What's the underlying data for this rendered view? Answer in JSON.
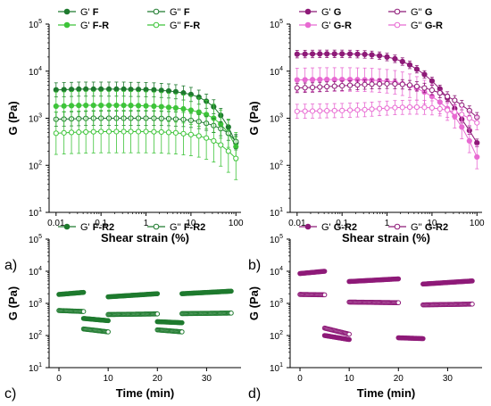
{
  "colors": {
    "F": "#1e7a2e",
    "F_R": "#3ec43a",
    "G": "#8e1a78",
    "G_R": "#e86ad2"
  },
  "chart_data": [
    {
      "panel": "a)",
      "type": "line",
      "xlabel": "Shear strain (%)",
      "ylabel": "G (Pa)",
      "x_scale": "log",
      "y_scale": "log",
      "xlim": [
        0.007,
        130
      ],
      "ylim": [
        10,
        100000
      ],
      "x_ticks": [
        {
          "v": 0.01,
          "label": "0.01"
        },
        {
          "v": 0.1,
          "label": "0.1"
        },
        {
          "v": 1,
          "label": "1"
        },
        {
          "v": 10,
          "label": "10"
        },
        {
          "v": 100,
          "label": "100"
        }
      ],
      "y_ticks": [
        {
          "v": 10,
          "base": "10",
          "exp": "1"
        },
        {
          "v": 100,
          "base": "10",
          "exp": "2"
        },
        {
          "v": 1000,
          "base": "10",
          "exp": "3"
        },
        {
          "v": 10000,
          "base": "10",
          "exp": "4"
        },
        {
          "v": 100000,
          "base": "10",
          "exp": "5"
        }
      ],
      "legend": {
        "position": "top",
        "columns": 2
      },
      "series": [
        {
          "name": "G' ",
          "name_bold": "F",
          "color_key": "F",
          "marker": "filled",
          "err": 0.15,
          "x": [
            0.01,
            0.015,
            0.022,
            0.032,
            0.046,
            0.068,
            0.1,
            0.15,
            0.22,
            0.32,
            0.46,
            0.68,
            1,
            1.5,
            2.2,
            3.2,
            4.6,
            6.8,
            10,
            15,
            22,
            32,
            46,
            68,
            100
          ],
          "y": [
            4000,
            4050,
            4100,
            4150,
            4150,
            4150,
            4150,
            4150,
            4150,
            4150,
            4100,
            4100,
            4050,
            4000,
            3900,
            3800,
            3650,
            3450,
            3200,
            2800,
            2300,
            1750,
            1150,
            650,
            300
          ]
        },
        {
          "name": "G' ",
          "name_bold": "F-R",
          "color_key": "F_R",
          "marker": "filled",
          "err": 0.3,
          "x": [
            0.01,
            0.015,
            0.022,
            0.032,
            0.046,
            0.068,
            0.1,
            0.15,
            0.22,
            0.32,
            0.46,
            0.68,
            1,
            1.5,
            2.2,
            3.2,
            4.6,
            6.8,
            10,
            15,
            22,
            32,
            46,
            68,
            100
          ],
          "y": [
            1800,
            1820,
            1850,
            1870,
            1880,
            1880,
            1880,
            1880,
            1880,
            1880,
            1870,
            1850,
            1830,
            1800,
            1760,
            1700,
            1650,
            1580,
            1480,
            1350,
            1200,
            1000,
            750,
            480,
            250
          ]
        },
        {
          "name": "G'' ",
          "name_bold": "F",
          "color_key": "F",
          "marker": "open",
          "err": 0.15,
          "x": [
            0.01,
            0.015,
            0.022,
            0.032,
            0.046,
            0.068,
            0.1,
            0.15,
            0.22,
            0.32,
            0.46,
            0.68,
            1,
            1.5,
            2.2,
            3.2,
            4.6,
            6.8,
            10,
            15,
            22,
            32,
            46,
            68,
            100
          ],
          "y": [
            950,
            960,
            970,
            980,
            990,
            1000,
            1000,
            1000,
            1000,
            1000,
            1000,
            1000,
            1000,
            1000,
            990,
            980,
            960,
            940,
            900,
            850,
            780,
            700,
            600,
            480,
            320
          ]
        },
        {
          "name": "G'' ",
          "name_bold": "F-R",
          "color_key": "F_R",
          "marker": "open",
          "err": 0.45,
          "x": [
            0.01,
            0.015,
            0.022,
            0.032,
            0.046,
            0.068,
            0.1,
            0.15,
            0.22,
            0.32,
            0.46,
            0.68,
            1,
            1.5,
            2.2,
            3.2,
            4.6,
            6.8,
            10,
            15,
            22,
            32,
            46,
            68,
            100
          ],
          "y": [
            480,
            490,
            500,
            505,
            510,
            515,
            520,
            520,
            520,
            520,
            520,
            520,
            520,
            515,
            510,
            500,
            490,
            470,
            450,
            420,
            380,
            330,
            270,
            200,
            140
          ]
        }
      ]
    },
    {
      "panel": "b)",
      "type": "line",
      "xlabel": "Shear strain (%)",
      "ylabel": "G (Pa)",
      "x_scale": "log",
      "y_scale": "log",
      "xlim": [
        0.007,
        130
      ],
      "ylim": [
        10,
        100000
      ],
      "x_ticks": [
        {
          "v": 0.01,
          "label": "0.01"
        },
        {
          "v": 0.1,
          "label": "0.1"
        },
        {
          "v": 1,
          "label": "1"
        },
        {
          "v": 10,
          "label": "10"
        },
        {
          "v": 100,
          "label": "100"
        }
      ],
      "y_ticks": [
        {
          "v": 10,
          "base": "10",
          "exp": "1"
        },
        {
          "v": 100,
          "base": "10",
          "exp": "2"
        },
        {
          "v": 1000,
          "base": "10",
          "exp": "3"
        },
        {
          "v": 10000,
          "base": "10",
          "exp": "4"
        },
        {
          "v": 100000,
          "base": "10",
          "exp": "5"
        }
      ],
      "legend": {
        "position": "top",
        "columns": 2
      },
      "series": [
        {
          "name": "G' ",
          "name_bold": "G",
          "color_key": "G",
          "marker": "filled",
          "err": 0.08,
          "x": [
            0.01,
            0.015,
            0.022,
            0.032,
            0.046,
            0.068,
            0.1,
            0.15,
            0.22,
            0.32,
            0.46,
            0.68,
            1,
            1.5,
            2.2,
            3.2,
            4.6,
            6.8,
            10,
            15,
            22,
            32,
            46,
            68,
            100
          ],
          "y": [
            23000,
            23100,
            23200,
            23300,
            23300,
            23300,
            23300,
            23200,
            23000,
            22700,
            22200,
            21300,
            20000,
            18300,
            16000,
            13600,
            11000,
            8500,
            6200,
            4200,
            2700,
            1600,
            950,
            550,
            300
          ]
        },
        {
          "name": "G' ",
          "name_bold": "G-R",
          "color_key": "G_R",
          "marker": "filled",
          "err": 0.25,
          "x": [
            0.01,
            0.015,
            0.022,
            0.032,
            0.046,
            0.068,
            0.1,
            0.15,
            0.22,
            0.32,
            0.46,
            0.68,
            1,
            1.5,
            2.2,
            3.2,
            4.6,
            6.8,
            10,
            15,
            22,
            32,
            46,
            68,
            100
          ],
          "y": [
            6500,
            6550,
            6600,
            6650,
            6650,
            6650,
            6650,
            6650,
            6600,
            6550,
            6450,
            6300,
            6100,
            5800,
            5400,
            4900,
            4300,
            3600,
            2900,
            2200,
            1600,
            1100,
            650,
            330,
            150
          ]
        },
        {
          "name": "G'' ",
          "name_bold": "G",
          "color_key": "G",
          "marker": "open",
          "err": 0.1,
          "x": [
            0.01,
            0.015,
            0.022,
            0.032,
            0.046,
            0.068,
            0.1,
            0.15,
            0.22,
            0.32,
            0.46,
            0.68,
            1,
            1.5,
            2.2,
            3.2,
            4.6,
            6.8,
            10,
            15,
            22,
            32,
            46,
            68,
            100
          ],
          "y": [
            4400,
            4450,
            4500,
            4600,
            4700,
            4800,
            4900,
            5000,
            5100,
            5200,
            5300,
            5350,
            5400,
            5350,
            5250,
            5050,
            4750,
            4400,
            3950,
            3450,
            2900,
            2400,
            1900,
            1450,
            1050
          ]
        },
        {
          "name": "G'' ",
          "name_bold": "G-R",
          "color_key": "G_R",
          "marker": "open",
          "err": 0.15,
          "x": [
            0.01,
            0.015,
            0.022,
            0.032,
            0.046,
            0.068,
            0.1,
            0.15,
            0.22,
            0.32,
            0.46,
            0.68,
            1,
            1.5,
            2.2,
            3.2,
            4.6,
            6.8,
            10,
            15,
            22,
            32,
            46,
            68,
            100
          ],
          "y": [
            1400,
            1410,
            1420,
            1430,
            1440,
            1450,
            1460,
            1480,
            1500,
            1520,
            1560,
            1600,
            1640,
            1680,
            1700,
            1720,
            1720,
            1700,
            1660,
            1580,
            1480,
            1350,
            1200,
            1000,
            800
          ]
        }
      ]
    },
    {
      "panel": "c)",
      "type": "scatter",
      "xlabel": "Time (min)",
      "ylabel": "G (Pa)",
      "x_scale": "linear",
      "y_scale": "log",
      "xlim": [
        -2,
        37
      ],
      "ylim": [
        10,
        100000
      ],
      "x_ticks": [
        {
          "v": 0,
          "label": "0"
        },
        {
          "v": 10,
          "label": "10"
        },
        {
          "v": 20,
          "label": "20"
        },
        {
          "v": 30,
          "label": "30"
        }
      ],
      "y_ticks": [
        {
          "v": 10,
          "base": "10",
          "exp": "1"
        },
        {
          "v": 100,
          "base": "10",
          "exp": "2"
        },
        {
          "v": 1000,
          "base": "10",
          "exp": "3"
        },
        {
          "v": 10000,
          "base": "10",
          "exp": "4"
        },
        {
          "v": 100000,
          "base": "10",
          "exp": "5"
        }
      ],
      "legend": {
        "position": "top",
        "columns": 2
      },
      "series": [
        {
          "name": "G' ",
          "name_bold": "F-R2",
          "color_key": "F",
          "marker": "filled",
          "segments": [
            {
              "t": [
                0,
                5
              ],
              "y": [
                1900,
                2200
              ]
            },
            {
              "t": [
                5,
                10
              ],
              "y": [
                340,
                290
              ]
            },
            {
              "t": [
                10,
                20
              ],
              "y": [
                1600,
                2000
              ]
            },
            {
              "t": [
                20,
                25
              ],
              "y": [
                270,
                250
              ]
            },
            {
              "t": [
                25,
                35
              ],
              "y": [
                2000,
                2400
              ]
            }
          ]
        },
        {
          "name": "G'' ",
          "name_bold": "F-R2",
          "color_key": "F",
          "marker": "open",
          "segments": [
            {
              "t": [
                0,
                5
              ],
              "y": [
                600,
                560
              ]
            },
            {
              "t": [
                5,
                10
              ],
              "y": [
                160,
                130
              ]
            },
            {
              "t": [
                10,
                20
              ],
              "y": [
                450,
                470
              ]
            },
            {
              "t": [
                20,
                25
              ],
              "y": [
                150,
                130
              ]
            },
            {
              "t": [
                25,
                35
              ],
              "y": [
                480,
                500
              ]
            }
          ]
        }
      ]
    },
    {
      "panel": "d)",
      "type": "scatter",
      "xlabel": "Time (min)",
      "ylabel": "G (Pa)",
      "x_scale": "linear",
      "y_scale": "log",
      "xlim": [
        -2,
        37
      ],
      "ylim": [
        10,
        100000
      ],
      "x_ticks": [
        {
          "v": 0,
          "label": "0"
        },
        {
          "v": 10,
          "label": "10"
        },
        {
          "v": 20,
          "label": "20"
        },
        {
          "v": 30,
          "label": "30"
        }
      ],
      "y_ticks": [
        {
          "v": 10,
          "base": "10",
          "exp": "1"
        },
        {
          "v": 100,
          "base": "10",
          "exp": "2"
        },
        {
          "v": 1000,
          "base": "10",
          "exp": "3"
        },
        {
          "v": 10000,
          "base": "10",
          "exp": "4"
        },
        {
          "v": 100000,
          "base": "10",
          "exp": "5"
        }
      ],
      "legend": {
        "position": "top",
        "columns": 2
      },
      "series": [
        {
          "name": "G' ",
          "name_bold": "G-R2",
          "color_key": "G",
          "marker": "filled",
          "segments": [
            {
              "t": [
                0,
                5
              ],
              "y": [
                8500,
                10000
              ]
            },
            {
              "t": [
                5,
                10
              ],
              "y": [
                100,
                75
              ]
            },
            {
              "t": [
                10,
                20
              ],
              "y": [
                4800,
                5800
              ]
            },
            {
              "t": [
                20,
                25
              ],
              "y": [
                85,
                80
              ]
            },
            {
              "t": [
                25,
                35
              ],
              "y": [
                4000,
                5000
              ]
            }
          ]
        },
        {
          "name": "G'' ",
          "name_bold": "G-R2",
          "color_key": "G",
          "marker": "open",
          "segments": [
            {
              "t": [
                0,
                5
              ],
              "y": [
                1900,
                1850
              ]
            },
            {
              "t": [
                5,
                10
              ],
              "y": [
                170,
                110
              ]
            },
            {
              "t": [
                10,
                20
              ],
              "y": [
                1100,
                1050
              ]
            },
            {
              "t": [
                25,
                35
              ],
              "y": [
                900,
                950
              ]
            }
          ]
        }
      ]
    }
  ]
}
